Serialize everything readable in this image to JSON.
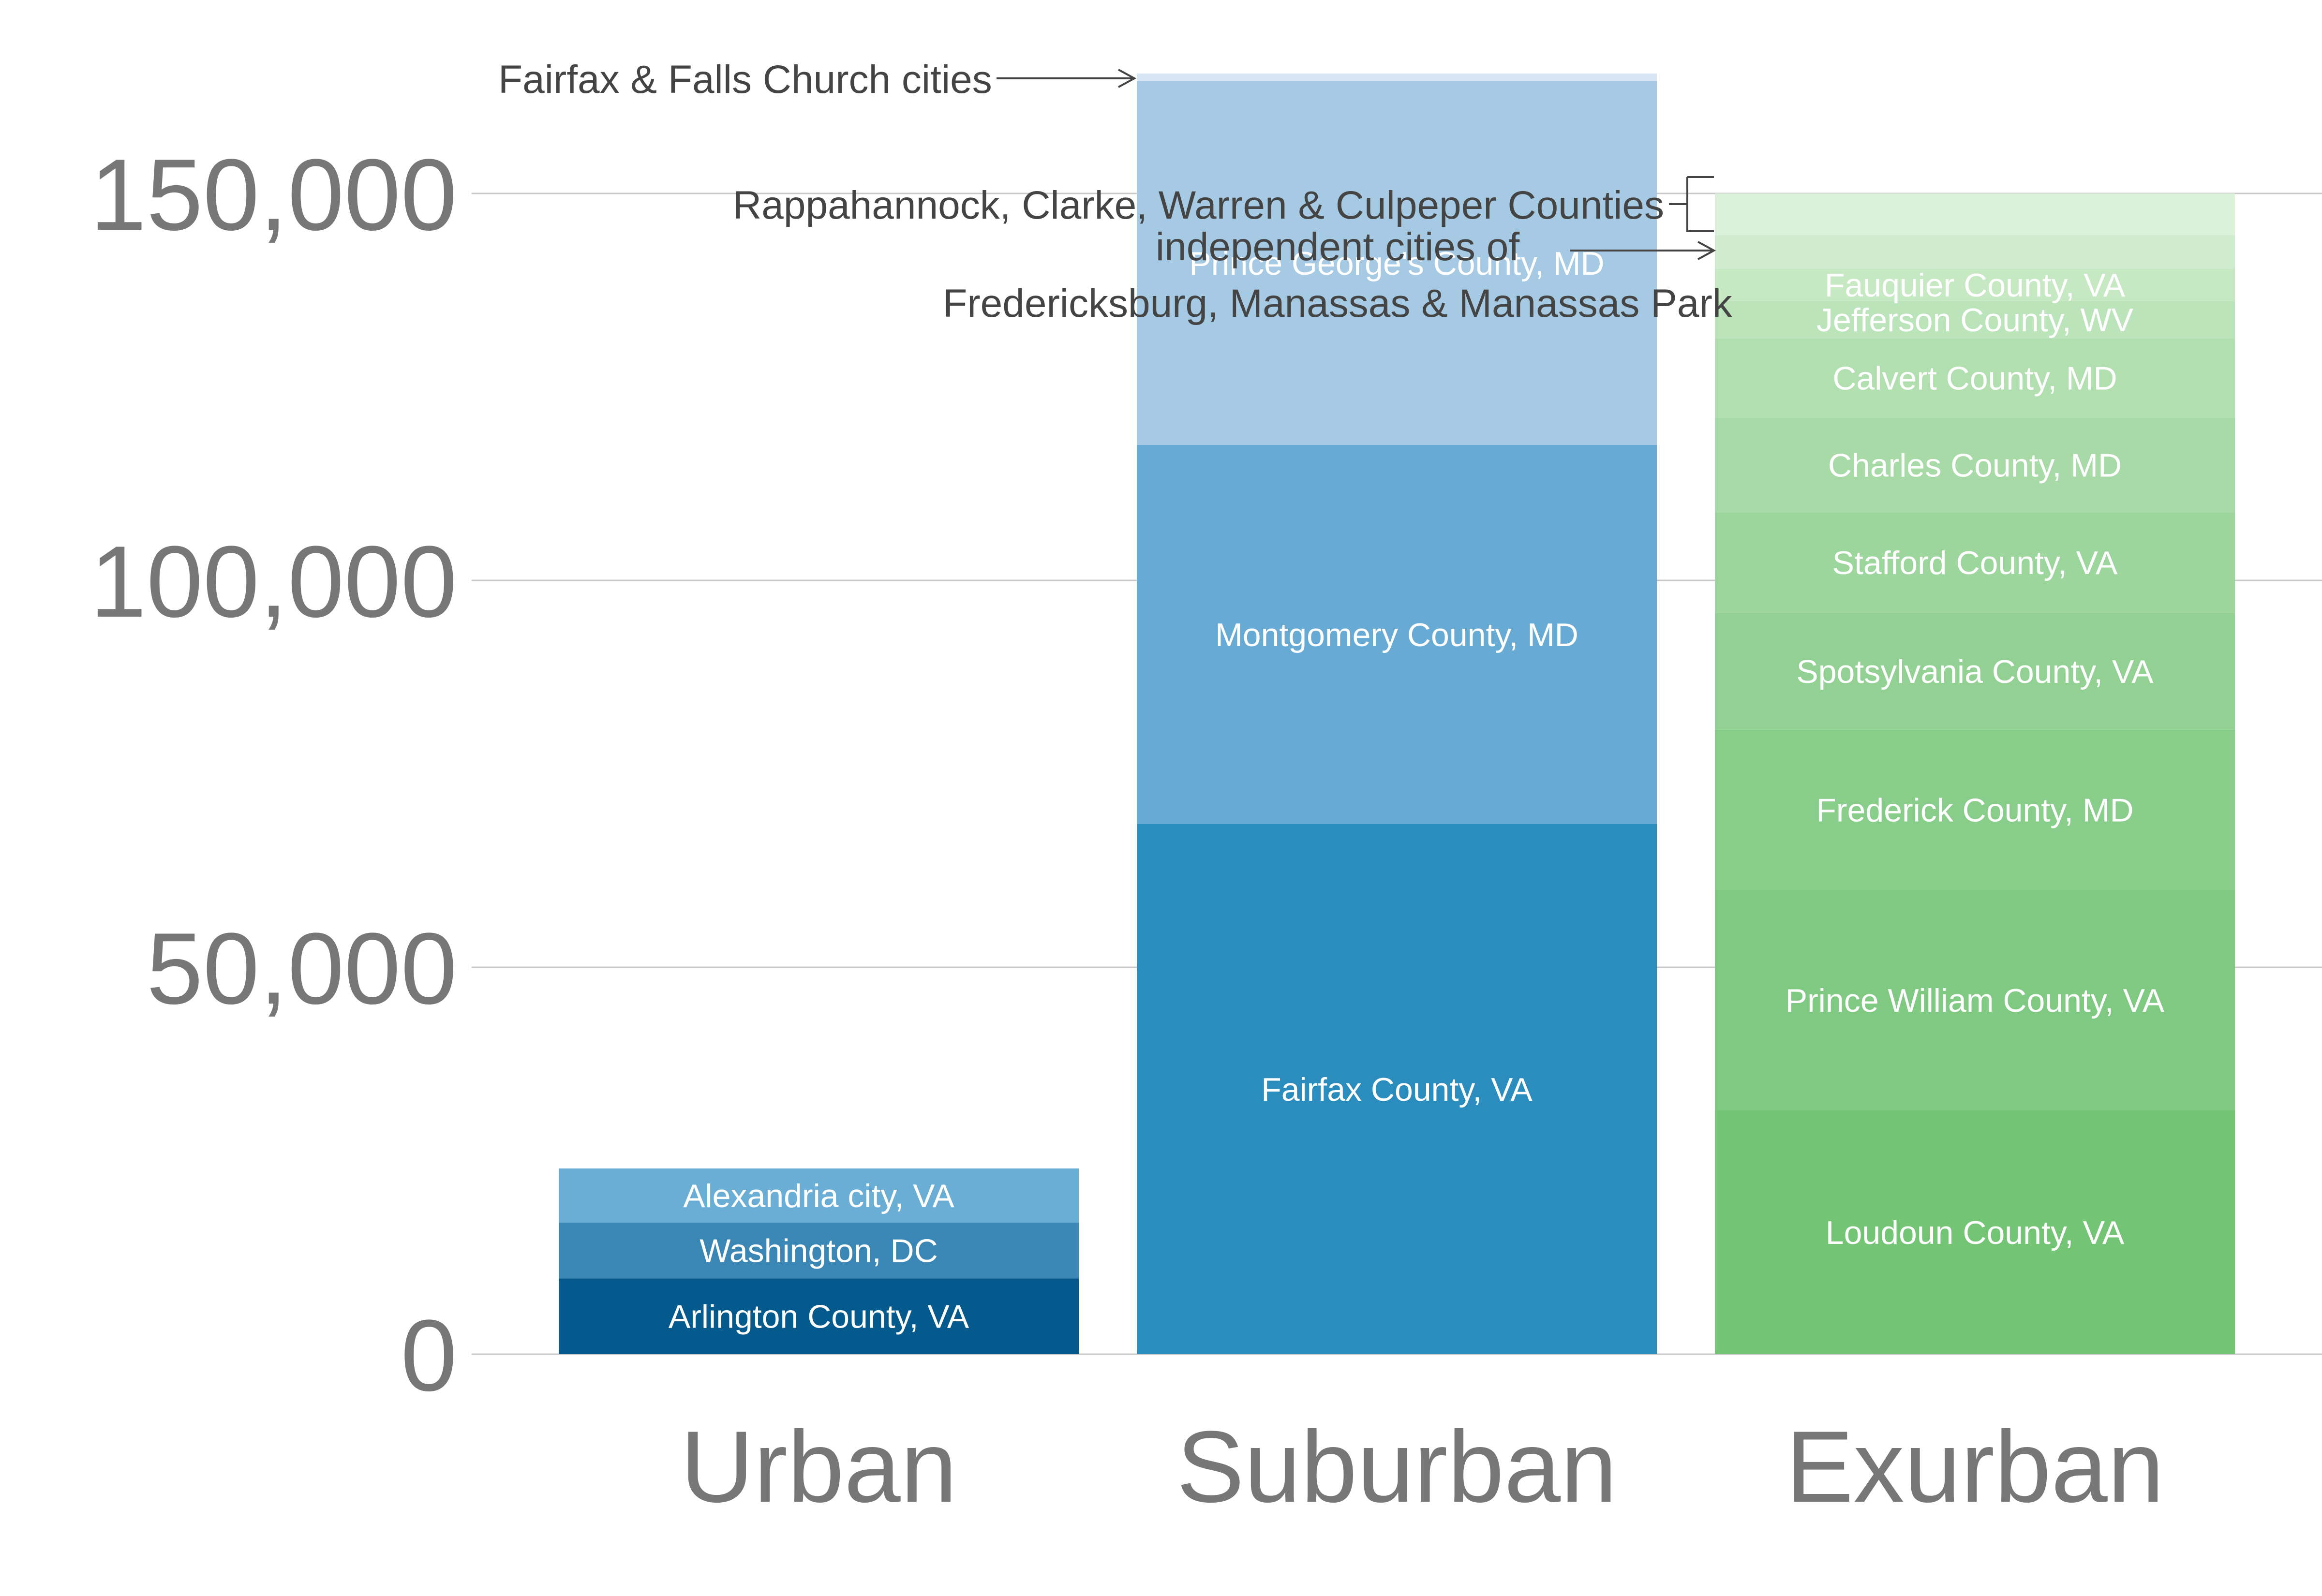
{
  "chart_data": {
    "type": "bar",
    "stacked": true,
    "categories": [
      "Urban",
      "Suburban",
      "Exurban"
    ],
    "ylim": [
      0,
      165000
    ],
    "yticks": [
      0,
      50000,
      100000,
      150000
    ],
    "ytick_labels": [
      "0",
      "50,000",
      "100,000",
      "150,000"
    ],
    "grid": true,
    "stacks": [
      {
        "category": "Urban",
        "segments": [
          {
            "name": "Arlington County, VA",
            "value": 9800,
            "color": "#045a8d",
            "label": "Arlington County, VA"
          },
          {
            "name": "Washington, DC",
            "value": 7200,
            "color": "#3a86b4",
            "label": "Washington, DC"
          },
          {
            "name": "Alexandria city, VA",
            "value": 7000,
            "color": "#6aadd5",
            "label": "Alexandria city, VA"
          }
        ]
      },
      {
        "category": "Suburban",
        "segments": [
          {
            "name": "Fairfax County, VA",
            "value": 68500,
            "color": "#2b8cbe",
            "label": "Fairfax County, VA"
          },
          {
            "name": "Montgomery County, MD",
            "value": 49000,
            "color": "#67aad4",
            "label": "Montgomery County, MD"
          },
          {
            "name": "Prince George's County, MD",
            "value": 47000,
            "color": "#a6cae3",
            "label": "Prince George's County, MD"
          },
          {
            "name": "Fairfax & Falls Church cities",
            "value": 1000,
            "color": "#d7e6f2",
            "label": ""
          }
        ]
      },
      {
        "category": "Exurban",
        "segments": [
          {
            "name": "Loudoun County, VA",
            "value": 31500,
            "color": "#74c476",
            "label": "Loudoun County, VA"
          },
          {
            "name": "Prince William County, VA",
            "value": 28500,
            "color": "#80c983",
            "label": "Prince William County, VA"
          },
          {
            "name": "Frederick County, MD",
            "value": 20700,
            "color": "#89cd8b",
            "label": "Frederick County, MD"
          },
          {
            "name": "Spotsylvania County, VA",
            "value": 15100,
            "color": "#92d193",
            "label": "Spotsylvania County, VA"
          },
          {
            "name": "Stafford County, VA",
            "value": 13000,
            "color": "#9dd69d",
            "label": "Stafford County, VA"
          },
          {
            "name": "Charles County, MD",
            "value": 12200,
            "color": "#a7daa6",
            "label": "Charles County, MD"
          },
          {
            "name": "Calvert County, MD",
            "value": 10300,
            "color": "#b2dfb0",
            "label": "Calvert County, MD"
          },
          {
            "name": "Jefferson County, WV",
            "value": 4800,
            "color": "#bce4ba",
            "label": "Jefferson County, WV"
          },
          {
            "name": "Fauquier County, VA",
            "value": 4200,
            "color": "#c6e8c3",
            "label": "Fauquier County, VA"
          },
          {
            "name": "independent cities of Fredericksburg, Manassas & Manassas Park",
            "value": 4300,
            "color": "#d0ecce",
            "label": ""
          },
          {
            "name": "Rappahannock, Clarke, Warren & Culpeper Counties",
            "value": 5400,
            "color": "#dbf1d9",
            "label": ""
          }
        ]
      }
    ],
    "annotations": [
      {
        "text": "Fairfax & Falls Church cities"
      },
      {
        "text": "Rappahannock, Clarke, Warren & Culpeper Counties"
      },
      {
        "text_line1": "independent cities of",
        "text_line2": "Fredericksburg, Manassas & Manassas Park"
      }
    ]
  }
}
